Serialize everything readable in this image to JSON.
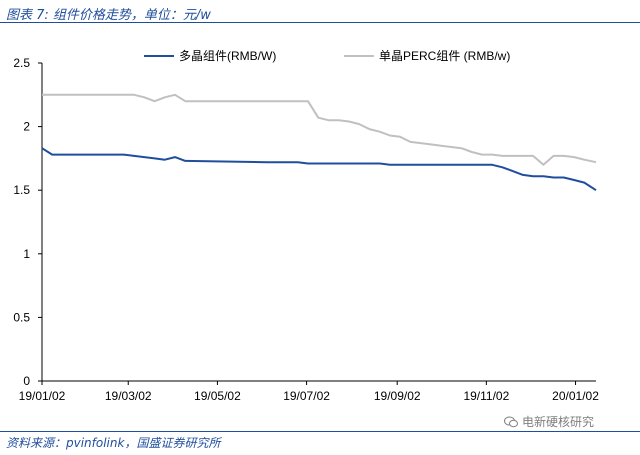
{
  "header": {
    "title": "图表 7: 组件价格走势，单位：元/w"
  },
  "footer": {
    "source": "资料来源：pvinfolink，国盛证券研究所",
    "watermark": "电新硬核研究"
  },
  "chart_data": {
    "type": "line",
    "title": "",
    "xlabel": "",
    "ylabel": "",
    "ylim": [
      0,
      2.5
    ],
    "yticks": [
      "0",
      "0.5",
      "1",
      "1.5",
      "2",
      "2.5"
    ],
    "xlim": [
      "2019-01-02",
      "2020-01-16"
    ],
    "xticks": [
      "19/01/02",
      "19/03/02",
      "19/05/02",
      "19/07/02",
      "19/09/02",
      "19/11/02",
      "20/01/02"
    ],
    "grid": false,
    "legend": "top",
    "series": [
      {
        "name": "多晶组件(RMB/W)",
        "color": "#1f4e9c",
        "x": [
          "2019-01-02",
          "2019-01-09",
          "2019-01-16",
          "2019-01-23",
          "2019-01-30",
          "2019-02-06",
          "2019-02-13",
          "2019-02-20",
          "2019-02-27",
          "2019-03-06",
          "2019-03-13",
          "2019-03-20",
          "2019-03-27",
          "2019-04-03",
          "2019-04-10",
          "2019-06-05",
          "2019-06-12",
          "2019-06-19",
          "2019-06-26",
          "2019-07-03",
          "2019-07-10",
          "2019-07-31",
          "2019-08-07",
          "2019-08-14",
          "2019-08-21",
          "2019-08-28",
          "2019-09-04",
          "2019-11-06",
          "2019-11-13",
          "2019-11-20",
          "2019-11-27",
          "2019-12-04",
          "2019-12-11",
          "2019-12-18",
          "2019-12-25",
          "2020-01-01",
          "2020-01-08",
          "2020-01-16"
        ],
        "values": [
          1.83,
          1.78,
          1.78,
          1.78,
          1.78,
          1.78,
          1.78,
          1.78,
          1.78,
          1.77,
          1.76,
          1.75,
          1.74,
          1.76,
          1.73,
          1.72,
          1.72,
          1.72,
          1.72,
          1.71,
          1.71,
          1.71,
          1.71,
          1.71,
          1.71,
          1.7,
          1.7,
          1.7,
          1.68,
          1.65,
          1.62,
          1.61,
          1.61,
          1.6,
          1.6,
          1.58,
          1.56,
          1.5
        ]
      },
      {
        "name": "单晶PERC组件 (RMB/w)",
        "color": "#c0c0c0",
        "x": [
          "2019-01-02",
          "2019-03-06",
          "2019-03-13",
          "2019-03-20",
          "2019-03-27",
          "2019-04-03",
          "2019-04-10",
          "2019-06-26",
          "2019-07-03",
          "2019-07-10",
          "2019-07-17",
          "2019-07-24",
          "2019-07-31",
          "2019-08-07",
          "2019-08-14",
          "2019-08-21",
          "2019-08-28",
          "2019-09-04",
          "2019-09-11",
          "2019-09-18",
          "2019-09-25",
          "2019-10-02",
          "2019-10-09",
          "2019-10-16",
          "2019-10-23",
          "2019-10-30",
          "2019-11-06",
          "2019-11-13",
          "2019-11-20",
          "2019-11-27",
          "2019-12-04",
          "2019-12-11",
          "2019-12-18",
          "2019-12-25",
          "2020-01-01",
          "2020-01-08",
          "2020-01-16"
        ],
        "values": [
          2.25,
          2.25,
          2.23,
          2.2,
          2.23,
          2.25,
          2.2,
          2.2,
          2.2,
          2.07,
          2.05,
          2.05,
          2.04,
          2.02,
          1.98,
          1.96,
          1.93,
          1.92,
          1.88,
          1.87,
          1.86,
          1.85,
          1.84,
          1.83,
          1.8,
          1.78,
          1.78,
          1.77,
          1.77,
          1.77,
          1.77,
          1.7,
          1.77,
          1.77,
          1.76,
          1.74,
          1.72
        ]
      }
    ]
  }
}
